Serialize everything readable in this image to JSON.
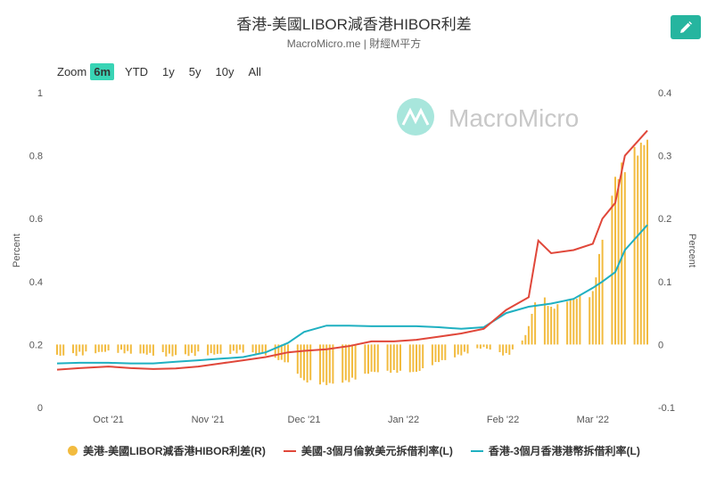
{
  "header": {
    "title": "香港-美國LIBOR減香港HIBOR利差",
    "subtitle": "MacroMicro.me | 財經M平方",
    "watermark": "MacroMicro"
  },
  "toolbar": {
    "zoom_label": "Zoom",
    "ranges": [
      {
        "label": "6m",
        "active": true
      },
      {
        "label": "YTD",
        "active": false
      },
      {
        "label": "1y",
        "active": false
      },
      {
        "label": "5y",
        "active": false
      },
      {
        "label": "10y",
        "active": false
      },
      {
        "label": "All",
        "active": false
      }
    ],
    "edit_icon": "pencil-icon"
  },
  "colors": {
    "accent": "#26b59f",
    "libor": "#e0473a",
    "hibor": "#1fb0c1",
    "spread": "#f2bb3f"
  },
  "chart_data": {
    "type": "line+bar",
    "x_range": [
      "2021-09-15",
      "2022-03-18"
    ],
    "x_ticks": [
      {
        "date": "2021-10-01",
        "label": "Oct '21"
      },
      {
        "date": "2021-11-01",
        "label": "Nov '21"
      },
      {
        "date": "2021-12-01",
        "label": "Dec '21"
      },
      {
        "date": "2022-01-01",
        "label": "Jan '22"
      },
      {
        "date": "2022-02-01",
        "label": "Feb '22"
      },
      {
        "date": "2022-03-01",
        "label": "Mar '22"
      }
    ],
    "y_left": {
      "label": "Percent",
      "min": 0,
      "max": 1,
      "ticks": [
        "0",
        "0.2",
        "0.4",
        "0.6",
        "0.8",
        "1"
      ]
    },
    "y_right": {
      "label": "Percent",
      "min": -0.1,
      "max": 0.4,
      "ticks": [
        "-0.1",
        "0",
        "0.1",
        "0.2",
        "0.3",
        "0.4"
      ]
    },
    "grid": false,
    "legend_position": "bottom",
    "legend": [
      "美港-美國LIBOR減香港HIBOR利差(R)",
      "美國-3個月倫敦美元拆借利率(L)",
      "香港-3個月香港港幣拆借利率(L)"
    ],
    "series_libor_points": [
      [
        "2021-09-15",
        0.12
      ],
      [
        "2021-09-22",
        0.125
      ],
      [
        "2021-10-01",
        0.13
      ],
      [
        "2021-10-08",
        0.125
      ],
      [
        "2021-10-15",
        0.122
      ],
      [
        "2021-10-22",
        0.124
      ],
      [
        "2021-10-29",
        0.13
      ],
      [
        "2021-11-05",
        0.14
      ],
      [
        "2021-11-12",
        0.15
      ],
      [
        "2021-11-19",
        0.16
      ],
      [
        "2021-11-26",
        0.175
      ],
      [
        "2021-12-01",
        0.18
      ],
      [
        "2021-12-08",
        0.185
      ],
      [
        "2021-12-15",
        0.195
      ],
      [
        "2021-12-22",
        0.21
      ],
      [
        "2021-12-29",
        0.21
      ],
      [
        "2022-01-05",
        0.215
      ],
      [
        "2022-01-12",
        0.225
      ],
      [
        "2022-01-19",
        0.235
      ],
      [
        "2022-01-26",
        0.25
      ],
      [
        "2022-02-02",
        0.31
      ],
      [
        "2022-02-09",
        0.35
      ],
      [
        "2022-02-12",
        0.53
      ],
      [
        "2022-02-16",
        0.49
      ],
      [
        "2022-02-23",
        0.5
      ],
      [
        "2022-03-01",
        0.52
      ],
      [
        "2022-03-04",
        0.6
      ],
      [
        "2022-03-08",
        0.65
      ],
      [
        "2022-03-11",
        0.8
      ],
      [
        "2022-03-18",
        0.88
      ]
    ],
    "series_hibor_points": [
      [
        "2021-09-15",
        0.14
      ],
      [
        "2021-09-22",
        0.142
      ],
      [
        "2021-10-01",
        0.142
      ],
      [
        "2021-10-08",
        0.14
      ],
      [
        "2021-10-15",
        0.14
      ],
      [
        "2021-10-22",
        0.145
      ],
      [
        "2021-10-29",
        0.15
      ],
      [
        "2021-11-05",
        0.155
      ],
      [
        "2021-11-12",
        0.16
      ],
      [
        "2021-11-19",
        0.175
      ],
      [
        "2021-11-26",
        0.205
      ],
      [
        "2021-12-01",
        0.24
      ],
      [
        "2021-12-08",
        0.26
      ],
      [
        "2021-12-15",
        0.26
      ],
      [
        "2021-12-22",
        0.258
      ],
      [
        "2021-12-29",
        0.258
      ],
      [
        "2022-01-05",
        0.258
      ],
      [
        "2022-01-12",
        0.255
      ],
      [
        "2022-01-19",
        0.25
      ],
      [
        "2022-01-26",
        0.255
      ],
      [
        "2022-02-02",
        0.3
      ],
      [
        "2022-02-09",
        0.32
      ],
      [
        "2022-02-16",
        0.33
      ],
      [
        "2022-02-23",
        0.345
      ],
      [
        "2022-03-01",
        0.38
      ],
      [
        "2022-03-04",
        0.4
      ],
      [
        "2022-03-08",
        0.43
      ],
      [
        "2022-03-11",
        0.5
      ],
      [
        "2022-03-18",
        0.58
      ]
    ],
    "series_spread_points": [
      [
        "2021-09-15",
        -0.02
      ],
      [
        "2021-09-22",
        -0.018
      ],
      [
        "2021-10-01",
        -0.012
      ],
      [
        "2021-10-08",
        -0.015
      ],
      [
        "2021-10-15",
        -0.018
      ],
      [
        "2021-10-22",
        -0.02
      ],
      [
        "2021-10-29",
        -0.018
      ],
      [
        "2021-11-05",
        -0.017
      ],
      [
        "2021-11-12",
        -0.013
      ],
      [
        "2021-11-19",
        -0.018
      ],
      [
        "2021-11-26",
        -0.03
      ],
      [
        "2021-12-01",
        -0.06
      ],
      [
        "2021-12-08",
        -0.065
      ],
      [
        "2021-12-15",
        -0.06
      ],
      [
        "2021-12-22",
        -0.045
      ],
      [
        "2021-12-29",
        -0.045
      ],
      [
        "2022-01-05",
        -0.045
      ],
      [
        "2022-01-12",
        -0.028
      ],
      [
        "2022-01-19",
        -0.018
      ],
      [
        "2022-01-26",
        -0.005
      ],
      [
        "2022-02-02",
        -0.02
      ],
      [
        "2022-02-06",
        -0.005
      ],
      [
        "2022-02-09",
        0.03
      ],
      [
        "2022-02-12",
        0.09
      ],
      [
        "2022-02-16",
        0.06
      ],
      [
        "2022-02-23",
        0.075
      ],
      [
        "2022-03-01",
        0.085
      ],
      [
        "2022-03-04",
        0.175
      ],
      [
        "2022-03-08",
        0.27
      ],
      [
        "2022-03-11",
        0.3
      ],
      [
        "2022-03-18",
        0.335
      ]
    ]
  }
}
